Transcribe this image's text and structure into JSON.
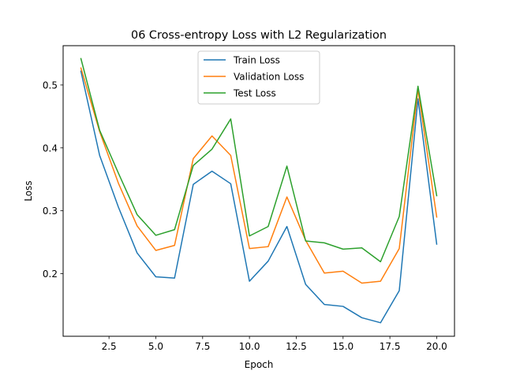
{
  "chart_data": {
    "type": "line",
    "title": "06 Cross-entropy Loss with L2 Regularization",
    "xlabel": "Epoch",
    "ylabel": "Loss",
    "xlim": [
      0.05,
      20.95
    ],
    "ylim": [
      0.1005,
      0.5625
    ],
    "xticks": [
      2.5,
      5.0,
      7.5,
      10.0,
      12.5,
      15.0,
      17.5,
      20.0
    ],
    "xtick_labels": [
      "2.5",
      "5.0",
      "7.5",
      "10.0",
      "12.5",
      "15.0",
      "17.5",
      "20.0"
    ],
    "yticks": [
      0.2,
      0.3,
      0.4,
      0.5
    ],
    "ytick_labels": [
      "0.2",
      "0.3",
      "0.4",
      "0.5"
    ],
    "grid": false,
    "legend_position": "top-center",
    "x": [
      1,
      2,
      3,
      4,
      5,
      6,
      7,
      8,
      9,
      10,
      11,
      12,
      13,
      14,
      15,
      16,
      17,
      18,
      19,
      20
    ],
    "series": [
      {
        "name": "Train Loss",
        "color": "#1f77b4",
        "values": [
          0.522,
          0.388,
          0.306,
          0.233,
          0.195,
          0.193,
          0.342,
          0.363,
          0.343,
          0.188,
          0.22,
          0.275,
          0.183,
          0.151,
          0.148,
          0.13,
          0.122,
          0.173,
          0.478,
          0.247
        ]
      },
      {
        "name": "Validation Loss",
        "color": "#ff7f0e",
        "values": [
          0.527,
          0.426,
          0.344,
          0.276,
          0.237,
          0.245,
          0.383,
          0.419,
          0.388,
          0.24,
          0.243,
          0.322,
          0.253,
          0.201,
          0.204,
          0.185,
          0.188,
          0.24,
          0.493,
          0.29
        ]
      },
      {
        "name": "Test Loss",
        "color": "#2ca02c",
        "values": [
          0.542,
          0.428,
          0.36,
          0.294,
          0.261,
          0.27,
          0.372,
          0.398,
          0.446,
          0.26,
          0.275,
          0.371,
          0.252,
          0.249,
          0.239,
          0.241,
          0.219,
          0.291,
          0.498,
          0.324
        ]
      }
    ]
  }
}
